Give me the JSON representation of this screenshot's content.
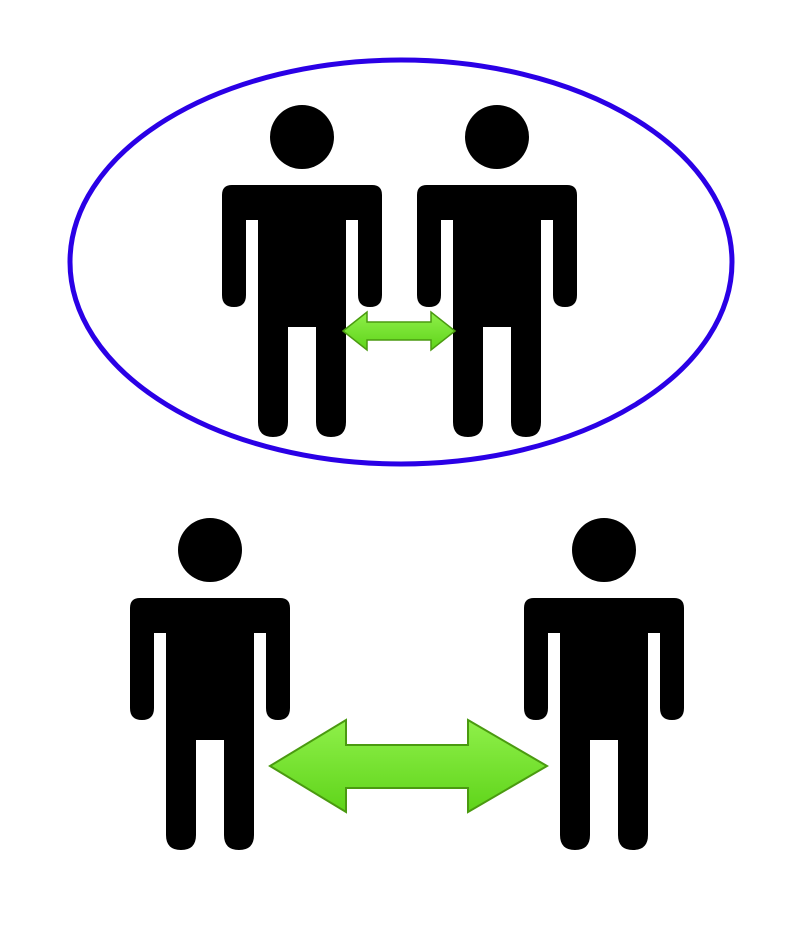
{
  "diagram": {
    "groups": [
      {
        "id": "close-pair",
        "enclosed": true,
        "enclosure_shape": "ellipse",
        "people": [
          "person-icon",
          "person-icon"
        ],
        "connector": "double-arrow-icon",
        "connector_size": "small"
      },
      {
        "id": "distant-pair",
        "enclosed": false,
        "people": [
          "person-icon",
          "person-icon"
        ],
        "connector": "double-arrow-icon",
        "connector_size": "large"
      }
    ],
    "colors": {
      "enclosure_stroke": "#2a00e6",
      "person_fill": "#000000",
      "arrow_fill_light": "#8ff04a",
      "arrow_fill_dark": "#5fd41a",
      "arrow_stroke": "#4a9a10"
    }
  }
}
